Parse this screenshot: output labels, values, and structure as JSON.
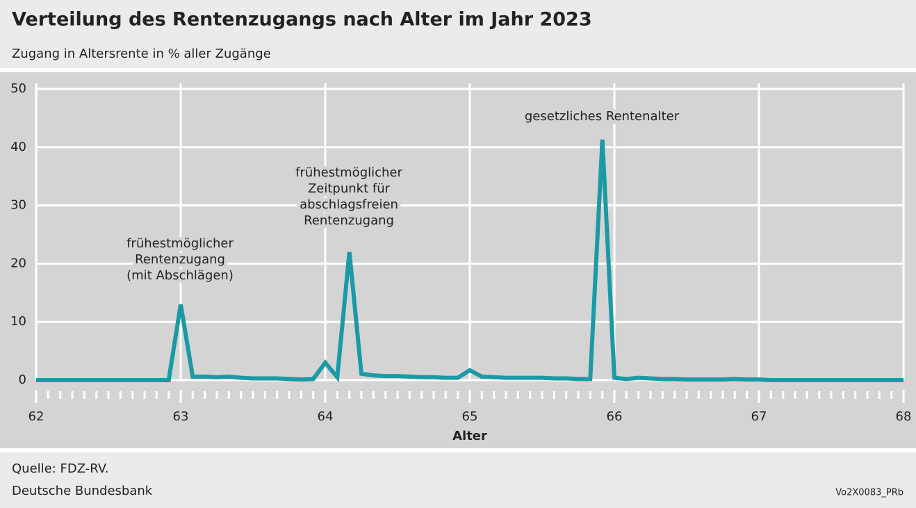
{
  "chart_data": {
    "type": "line",
    "title": "Verteilung des Rentenzugangs nach Alter im Jahr 2023",
    "subtitle": "Zugang in Altersrente in % aller Zugänge",
    "x_label": "Alter",
    "x": [
      62,
      62.083,
      62.167,
      62.25,
      62.333,
      62.417,
      62.5,
      62.583,
      62.667,
      62.75,
      62.833,
      62.917,
      63,
      63.083,
      63.167,
      63.25,
      63.333,
      63.417,
      63.5,
      63.583,
      63.667,
      63.75,
      63.833,
      63.917,
      64,
      64.083,
      64.167,
      64.25,
      64.333,
      64.417,
      64.5,
      64.583,
      64.667,
      64.75,
      64.833,
      64.917,
      65,
      65.083,
      65.167,
      65.25,
      65.333,
      65.417,
      65.5,
      65.583,
      65.667,
      65.75,
      65.833,
      65.917,
      66,
      66.083,
      66.167,
      66.25,
      66.333,
      66.417,
      66.5,
      66.583,
      66.667,
      66.75,
      66.833,
      66.917,
      67,
      67.083,
      67.167,
      67.25,
      67.333,
      67.417,
      67.5,
      67.583,
      67.667,
      67.75,
      67.833,
      67.917,
      68
    ],
    "series": [
      {
        "name": "Zugang in Altersrente",
        "color": "#1b9aa6",
        "values": [
          0,
          0,
          0,
          0,
          0,
          0,
          0,
          0,
          0,
          0,
          0,
          0,
          13,
          0.6,
          0.6,
          0.5,
          0.6,
          0.4,
          0.3,
          0.3,
          0.3,
          0.2,
          0.1,
          0.2,
          3,
          0.5,
          22,
          1.1,
          0.8,
          0.7,
          0.7,
          0.6,
          0.5,
          0.5,
          0.4,
          0.4,
          1.7,
          0.6,
          0.5,
          0.4,
          0.4,
          0.4,
          0.4,
          0.3,
          0.3,
          0.2,
          0.2,
          41.3,
          0.4,
          0.2,
          0.4,
          0.3,
          0.2,
          0.2,
          0.1,
          0.1,
          0.1,
          0.1,
          0.2,
          0.1,
          0.1,
          0,
          0,
          0,
          0,
          0,
          0,
          0,
          0,
          0,
          0,
          0,
          0
        ]
      }
    ],
    "xlim": [
      62,
      68
    ],
    "xticks": [
      62,
      63,
      64,
      65,
      66,
      67,
      68
    ],
    "ylim": [
      0,
      50
    ],
    "yticks": [
      0,
      10,
      20,
      30,
      40,
      50
    ],
    "grid": true,
    "annotations": [
      {
        "lines": [
          "frühestmöglicher",
          "Rentenzugang",
          "(mit Abschlägen)"
        ]
      },
      {
        "lines": [
          "frühestmöglicher",
          "Zeitpunkt für",
          "abschlagsfreien",
          "Rentenzugang"
        ]
      },
      {
        "lines": [
          "gesetzliches Rentenalter"
        ]
      }
    ],
    "source": "Quelle: FDZ-RV.",
    "publisher": "Deutsche Bundesbank",
    "code": "Vo2X0083_PRb"
  }
}
